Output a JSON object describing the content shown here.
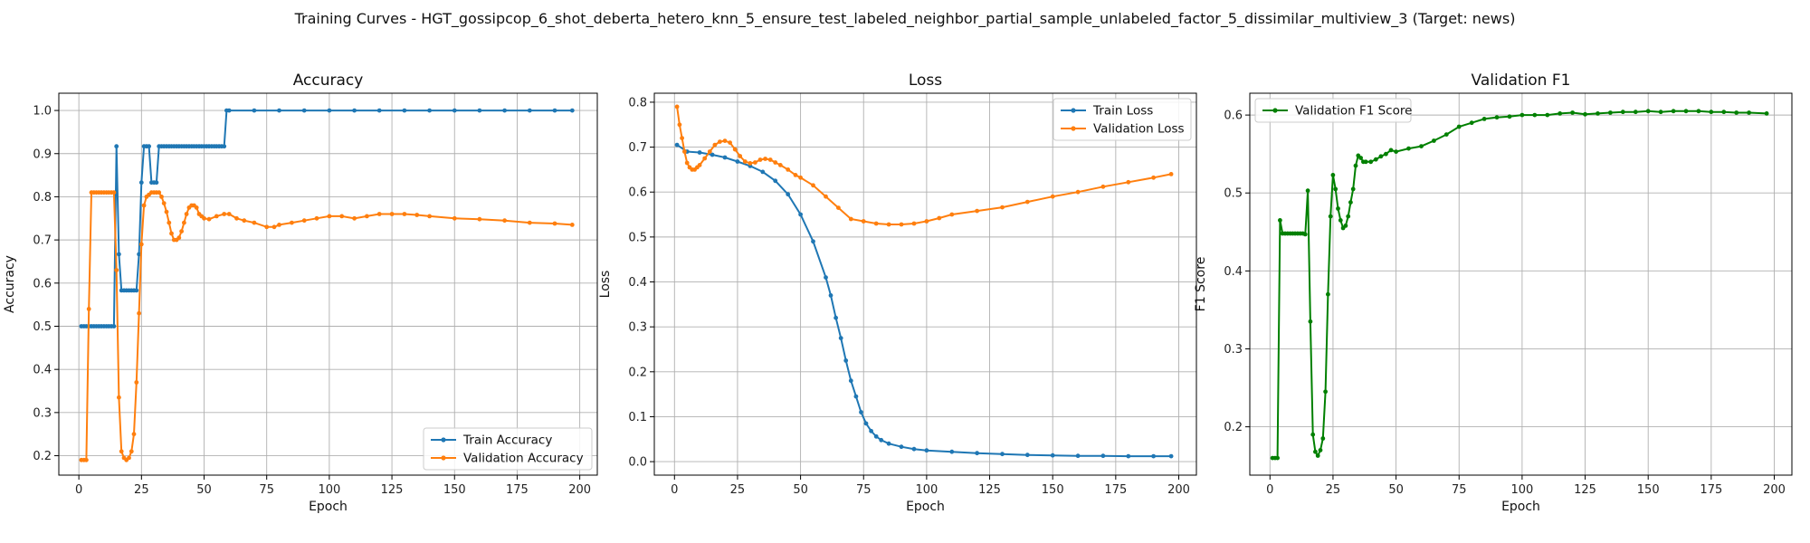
{
  "figure": {
    "suptitle": "Training Curves - HGT_gossipcop_6_shot_deberta_hetero_knn_5_ensure_test_labeled_neighbor_partial_sample_unlabeled_factor_5_dissimilar_multiview_3 (Target: news)"
  },
  "chart_data": [
    {
      "type": "line",
      "title": "Accuracy",
      "xlabel": "Epoch",
      "ylabel": "Accuracy",
      "xlim": [
        -8,
        207
      ],
      "ylim": [
        0.155,
        1.04
      ],
      "xticks": [
        0,
        25,
        50,
        75,
        100,
        125,
        150,
        175,
        200
      ],
      "yticks": [
        0.2,
        0.3,
        0.4,
        0.5,
        0.6,
        0.7,
        0.8,
        0.9,
        1.0
      ],
      "grid": true,
      "legend": "lower-right",
      "series": [
        {
          "name": "Train Accuracy",
          "color": "#1f77b4",
          "x": [
            1,
            2,
            3,
            4,
            5,
            6,
            7,
            8,
            9,
            10,
            11,
            12,
            13,
            14,
            15,
            16,
            17,
            18,
            19,
            20,
            21,
            22,
            23,
            24,
            25,
            26,
            27,
            28,
            29,
            30,
            31,
            32,
            33,
            34,
            35,
            36,
            37,
            38,
            39,
            40,
            41,
            42,
            43,
            44,
            45,
            46,
            47,
            48,
            49,
            50,
            51,
            52,
            53,
            54,
            55,
            56,
            57,
            58,
            59,
            60,
            70,
            80,
            90,
            100,
            110,
            120,
            130,
            140,
            150,
            160,
            170,
            180,
            190,
            197
          ],
          "y": [
            0.5,
            0.5,
            0.5,
            0.5,
            0.5,
            0.5,
            0.5,
            0.5,
            0.5,
            0.5,
            0.5,
            0.5,
            0.5,
            0.5,
            0.917,
            0.667,
            0.583,
            0.583,
            0.583,
            0.583,
            0.583,
            0.583,
            0.583,
            0.667,
            0.833,
            0.917,
            0.917,
            0.917,
            0.833,
            0.833,
            0.833,
            0.917,
            0.917,
            0.917,
            0.917,
            0.917,
            0.917,
            0.917,
            0.917,
            0.917,
            0.917,
            0.917,
            0.917,
            0.917,
            0.917,
            0.917,
            0.917,
            0.917,
            0.917,
            0.917,
            0.917,
            0.917,
            0.917,
            0.917,
            0.917,
            0.917,
            0.917,
            0.917,
            1.0,
            1.0,
            1.0,
            1.0,
            1.0,
            1.0,
            1.0,
            1.0,
            1.0,
            1.0,
            1.0,
            1.0,
            1.0,
            1.0,
            1.0,
            1.0
          ]
        },
        {
          "name": "Validation Accuracy",
          "color": "#ff7f0e",
          "x": [
            1,
            2,
            3,
            4,
            5,
            6,
            7,
            8,
            9,
            10,
            11,
            12,
            13,
            14,
            15,
            16,
            17,
            18,
            19,
            20,
            21,
            22,
            23,
            24,
            25,
            26,
            27,
            28,
            29,
            30,
            31,
            32,
            33,
            34,
            35,
            36,
            37,
            38,
            39,
            40,
            41,
            42,
            43,
            44,
            45,
            46,
            47,
            48,
            49,
            50,
            52,
            55,
            58,
            60,
            63,
            66,
            70,
            75,
            78,
            80,
            85,
            90,
            95,
            100,
            105,
            110,
            115,
            120,
            125,
            130,
            135,
            140,
            150,
            160,
            170,
            180,
            190,
            197
          ],
          "y": [
            0.19,
            0.19,
            0.19,
            0.54,
            0.81,
            0.81,
            0.81,
            0.81,
            0.81,
            0.81,
            0.81,
            0.81,
            0.81,
            0.81,
            0.63,
            0.335,
            0.21,
            0.195,
            0.19,
            0.195,
            0.21,
            0.25,
            0.37,
            0.53,
            0.69,
            0.78,
            0.8,
            0.805,
            0.81,
            0.81,
            0.81,
            0.81,
            0.8,
            0.785,
            0.765,
            0.74,
            0.715,
            0.7,
            0.7,
            0.705,
            0.72,
            0.74,
            0.76,
            0.775,
            0.78,
            0.78,
            0.775,
            0.76,
            0.755,
            0.75,
            0.748,
            0.755,
            0.76,
            0.76,
            0.75,
            0.745,
            0.74,
            0.73,
            0.73,
            0.735,
            0.74,
            0.745,
            0.75,
            0.755,
            0.755,
            0.75,
            0.755,
            0.76,
            0.76,
            0.76,
            0.758,
            0.755,
            0.75,
            0.748,
            0.745,
            0.74,
            0.738,
            0.735
          ]
        }
      ]
    },
    {
      "type": "line",
      "title": "Loss",
      "xlabel": "Epoch",
      "ylabel": "Loss",
      "xlim": [
        -8,
        207
      ],
      "ylim": [
        -0.03,
        0.82
      ],
      "xticks": [
        0,
        25,
        50,
        75,
        100,
        125,
        150,
        175,
        200
      ],
      "yticks": [
        0.0,
        0.1,
        0.2,
        0.3,
        0.4,
        0.5,
        0.6,
        0.7,
        0.8
      ],
      "grid": true,
      "legend": "top-right",
      "series": [
        {
          "name": "Train Loss",
          "color": "#1f77b4",
          "x": [
            1,
            5,
            10,
            15,
            20,
            25,
            30,
            35,
            40,
            45,
            50,
            55,
            60,
            62,
            64,
            66,
            68,
            70,
            72,
            74,
            76,
            78,
            80,
            82,
            85,
            90,
            95,
            100,
            110,
            120,
            130,
            140,
            150,
            160,
            170,
            180,
            190,
            197
          ],
          "y": [
            0.705,
            0.69,
            0.688,
            0.683,
            0.677,
            0.668,
            0.658,
            0.645,
            0.625,
            0.595,
            0.55,
            0.49,
            0.41,
            0.37,
            0.32,
            0.275,
            0.225,
            0.18,
            0.145,
            0.11,
            0.085,
            0.068,
            0.056,
            0.048,
            0.04,
            0.033,
            0.028,
            0.025,
            0.022,
            0.019,
            0.017,
            0.015,
            0.014,
            0.013,
            0.013,
            0.012,
            0.012,
            0.012
          ]
        },
        {
          "name": "Validation Loss",
          "color": "#ff7f0e",
          "x": [
            1,
            2,
            3,
            4,
            5,
            6,
            7,
            8,
            9,
            10,
            12,
            14,
            16,
            18,
            20,
            22,
            24,
            26,
            28,
            30,
            32,
            34,
            36,
            38,
            40,
            42,
            45,
            48,
            50,
            55,
            60,
            65,
            70,
            75,
            80,
            85,
            90,
            95,
            100,
            105,
            110,
            120,
            130,
            140,
            150,
            160,
            170,
            180,
            190,
            197
          ],
          "y": [
            0.79,
            0.75,
            0.72,
            0.69,
            0.665,
            0.655,
            0.65,
            0.65,
            0.655,
            0.66,
            0.675,
            0.69,
            0.705,
            0.712,
            0.714,
            0.71,
            0.695,
            0.68,
            0.668,
            0.664,
            0.666,
            0.672,
            0.674,
            0.672,
            0.666,
            0.66,
            0.65,
            0.638,
            0.632,
            0.615,
            0.59,
            0.565,
            0.54,
            0.535,
            0.53,
            0.528,
            0.528,
            0.53,
            0.535,
            0.542,
            0.55,
            0.558,
            0.566,
            0.578,
            0.59,
            0.6,
            0.612,
            0.622,
            0.632,
            0.64
          ]
        }
      ]
    },
    {
      "type": "line",
      "title": "Validation F1",
      "xlabel": "Epoch",
      "ylabel": "F1 Score",
      "xlim": [
        -8,
        207
      ],
      "ylim": [
        0.138,
        0.628
      ],
      "xticks": [
        0,
        25,
        50,
        75,
        100,
        125,
        150,
        175,
        200
      ],
      "yticks": [
        0.2,
        0.3,
        0.4,
        0.5,
        0.6
      ],
      "grid": true,
      "legend": "top-left",
      "series": [
        {
          "name": "Validation F1 Score",
          "color": "#008000",
          "x": [
            1,
            2,
            3,
            4,
            5,
            6,
            7,
            8,
            9,
            10,
            11,
            12,
            13,
            14,
            15,
            16,
            17,
            18,
            19,
            20,
            21,
            22,
            23,
            24,
            25,
            26,
            27,
            28,
            29,
            30,
            31,
            32,
            33,
            34,
            35,
            36,
            37,
            38,
            40,
            42,
            44,
            46,
            48,
            50,
            55,
            60,
            65,
            70,
            75,
            80,
            85,
            90,
            95,
            100,
            105,
            110,
            115,
            120,
            125,
            130,
            135,
            140,
            145,
            150,
            155,
            160,
            165,
            170,
            175,
            180,
            185,
            190,
            197
          ],
          "y": [
            0.16,
            0.16,
            0.16,
            0.465,
            0.448,
            0.448,
            0.448,
            0.448,
            0.448,
            0.448,
            0.448,
            0.448,
            0.448,
            0.447,
            0.503,
            0.335,
            0.19,
            0.168,
            0.163,
            0.17,
            0.185,
            0.245,
            0.37,
            0.47,
            0.523,
            0.505,
            0.48,
            0.465,
            0.455,
            0.458,
            0.47,
            0.488,
            0.505,
            0.535,
            0.548,
            0.545,
            0.54,
            0.54,
            0.54,
            0.543,
            0.547,
            0.55,
            0.555,
            0.553,
            0.557,
            0.56,
            0.567,
            0.575,
            0.585,
            0.59,
            0.595,
            0.597,
            0.598,
            0.6,
            0.6,
            0.6,
            0.602,
            0.603,
            0.601,
            0.602,
            0.603,
            0.604,
            0.604,
            0.605,
            0.604,
            0.605,
            0.605,
            0.605,
            0.604,
            0.604,
            0.603,
            0.603,
            0.602
          ]
        }
      ]
    }
  ]
}
